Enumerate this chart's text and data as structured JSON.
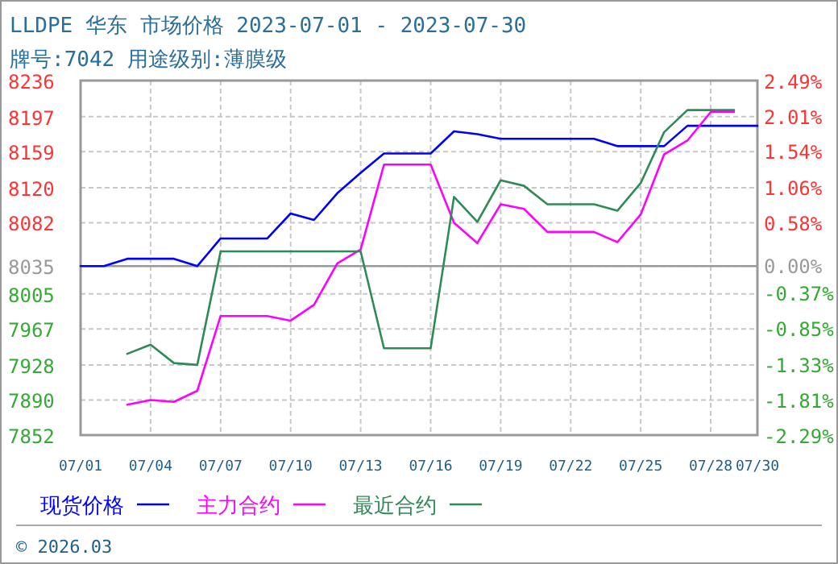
{
  "chart_data": {
    "type": "line",
    "title": "LLDPE 华东 市场价格 2023-07-01 - 2023-07-30",
    "subtitle": "牌号:7042 用途级别:薄膜级",
    "x": [
      "2023-07-01",
      "2023-07-02",
      "2023-07-03",
      "2023-07-04",
      "2023-07-05",
      "2023-07-06",
      "2023-07-07",
      "2023-07-08",
      "2023-07-09",
      "2023-07-10",
      "2023-07-11",
      "2023-07-12",
      "2023-07-13",
      "2023-07-14",
      "2023-07-15",
      "2023-07-16",
      "2023-07-17",
      "2023-07-18",
      "2023-07-19",
      "2023-07-20",
      "2023-07-21",
      "2023-07-22",
      "2023-07-23",
      "2023-07-24",
      "2023-07-25",
      "2023-07-26",
      "2023-07-27",
      "2023-07-28",
      "2023-07-29",
      "2023-07-30"
    ],
    "series": [
      {
        "name": "现货价格",
        "color": "#0000ff",
        "values": [
          8035,
          8035,
          8043,
          8043,
          8043,
          8035,
          8065,
          8065,
          8065,
          8092,
          8085,
          8114,
          8136,
          8157,
          8157,
          8157,
          8181,
          8178,
          8173,
          8173,
          8173,
          8173,
          8173,
          8165,
          8165,
          8165,
          8187,
          8187,
          8187,
          8187
        ]
      },
      {
        "name": "主力合约",
        "color": "#ff00ff",
        "values": [
          null,
          null,
          7885,
          7890,
          7888,
          7900,
          7981,
          7981,
          7981,
          7976,
          7993,
          8038,
          8053,
          8145,
          8145,
          8145,
          8082,
          8060,
          8102,
          8097,
          8072,
          8072,
          8072,
          8061,
          8091,
          8156,
          8171,
          8202,
          8202,
          null
        ]
      },
      {
        "name": "最近合约",
        "color": "#2e8b57",
        "values": [
          null,
          null,
          7940,
          7950,
          7930,
          7928,
          8051,
          8051,
          8051,
          8051,
          8051,
          8051,
          8051,
          7946,
          7946,
          7946,
          8110,
          8083,
          8128,
          8122,
          8102,
          8102,
          8102,
          8095,
          8125,
          8180,
          8204,
          8204,
          8204,
          null
        ]
      }
    ],
    "xlim": [
      "2023-07-01",
      "2023-07-30"
    ],
    "xticks": [
      {
        "value": "2023-07-01",
        "label": "07/01"
      },
      {
        "value": "2023-07-04",
        "label": "07/04"
      },
      {
        "value": "2023-07-07",
        "label": "07/07"
      },
      {
        "value": "2023-07-10",
        "label": "07/10"
      },
      {
        "value": "2023-07-13",
        "label": "07/13"
      },
      {
        "value": "2023-07-16",
        "label": "07/16"
      },
      {
        "value": "2023-07-19",
        "label": "07/19"
      },
      {
        "value": "2023-07-22",
        "label": "07/22"
      },
      {
        "value": "2023-07-25",
        "label": "07/25"
      },
      {
        "value": "2023-07-28",
        "label": "07/28"
      },
      {
        "value": "2023-07-30",
        "label": "07/30"
      }
    ],
    "ylim": [
      7852,
      8236
    ],
    "yticks": [
      7852,
      7890,
      7928,
      7967,
      8005,
      8035,
      8082,
      8120,
      8159,
      8197,
      8236
    ],
    "y2lim": [
      -2.29,
      2.49
    ],
    "y2ticks": [
      {
        "value": -2.29,
        "label": "-2.29%"
      },
      {
        "value": -1.81,
        "label": "-1.81%"
      },
      {
        "value": -1.33,
        "label": "-1.33%"
      },
      {
        "value": -0.85,
        "label": "-0.85%"
      },
      {
        "value": -0.37,
        "label": "-0.37%"
      },
      {
        "value": 0,
        "label": "0.00%"
      },
      {
        "value": 0.58,
        "label": "0.58%"
      },
      {
        "value": 1.06,
        "label": "1.06%"
      },
      {
        "value": 1.54,
        "label": "1.54%"
      },
      {
        "value": 2.01,
        "label": "2.01%"
      },
      {
        "value": 2.49,
        "label": "2.49%"
      }
    ],
    "ref_lines": [
      {
        "axis": "y",
        "value": 8035,
        "color": "#999999",
        "line_style": "solid"
      }
    ],
    "grid": true,
    "legend": "bottom",
    "marker": "none",
    "line_style": "solid",
    "annotations": [
      "© 2026.03"
    ]
  }
}
